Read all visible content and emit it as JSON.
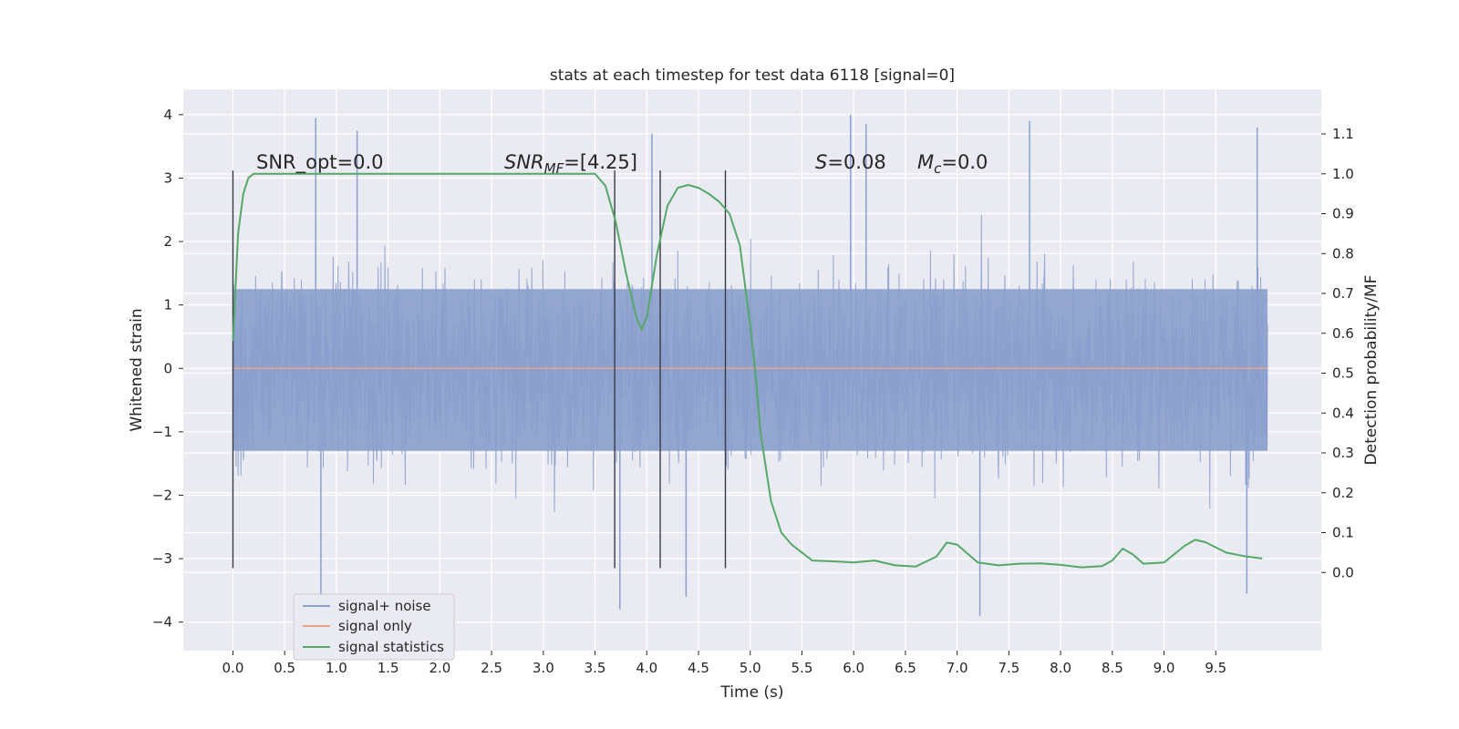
{
  "chart_data": {
    "type": "line",
    "title": "stats at each timestep for test data 6118 [signal=0]",
    "xlabel": "Time (s)",
    "ylabel_left": "Whitened strain",
    "ylabel_right": "Detection probability/MF",
    "xlim": [
      -0.48,
      10.52
    ],
    "ylim_left": [
      -4.45,
      4.4
    ],
    "ylim_right": [
      -0.196,
      1.212
    ],
    "x_ticks": [
      0.0,
      0.5,
      1.0,
      1.5,
      2.0,
      2.5,
      3.0,
      3.5,
      4.0,
      4.5,
      5.0,
      5.5,
      6.0,
      6.5,
      7.0,
      7.5,
      8.0,
      8.5,
      9.0,
      9.5
    ],
    "x_tick_labels": [
      "0.0",
      "0.5",
      "1.0",
      "1.5",
      "2.0",
      "2.5",
      "3.0",
      "3.5",
      "4.0",
      "4.5",
      "5.0",
      "5.5",
      "6.0",
      "6.5",
      "7.0",
      "7.5",
      "8.0",
      "8.5",
      "9.0",
      "9.5"
    ],
    "y_left_ticks": [
      -4,
      -3,
      -2,
      -1,
      0,
      1,
      2,
      3,
      4
    ],
    "y_left_tick_labels": [
      "−4",
      "−3",
      "−2",
      "−1",
      "0",
      "1",
      "2",
      "3",
      "4"
    ],
    "y_right_ticks": [
      0.0,
      0.1,
      0.2,
      0.3,
      0.4,
      0.5,
      0.6,
      0.7,
      0.8,
      0.9,
      1.0,
      1.1
    ],
    "y_right_tick_labels": [
      "0.0",
      "0.1",
      "0.2",
      "0.3",
      "0.4",
      "0.5",
      "0.6",
      "0.7",
      "0.8",
      "0.9",
      "1.0",
      "1.1"
    ],
    "grid": true,
    "legend": {
      "placement": "lower-left",
      "entries": [
        {
          "label": "signal+ noise",
          "color": "#8a9fcc"
        },
        {
          "label": "signal only",
          "color": "#e8a48a"
        },
        {
          "label": "signal statistics",
          "color": "#55a868"
        }
      ]
    },
    "annotations": {
      "snr_opt": "SNR_opt=0.0",
      "snr_mf_main": "SNR",
      "snr_mf_sub": "MF",
      "snr_mf_value": "=[4.25]",
      "s_symbol": "S",
      "s_value": "=0.08",
      "mc_main": "M",
      "mc_sub": "c",
      "mc_value": "=0.0"
    },
    "vertical_markers_x": [
      0.0,
      3.69,
      4.13,
      4.76
    ],
    "vertical_markers_range": [
      -3.15,
      3.12
    ],
    "series": [
      {
        "name": "signal+ noise",
        "axis": "left",
        "color": "#8a9fcc",
        "x_range": [
          0.0,
          10.0
        ],
        "band_typical": [
          -1.3,
          1.25
        ],
        "band_envelope": [
          -2.5,
          2.5
        ],
        "notable_peaks": [
          {
            "x": 0.8,
            "y": 3.95
          },
          {
            "x": 1.2,
            "y": 3.75
          },
          {
            "x": 3.74,
            "y": -3.8
          },
          {
            "x": 4.05,
            "y": 3.7
          },
          {
            "x": 5.97,
            "y": 4.0
          },
          {
            "x": 6.12,
            "y": 3.85
          },
          {
            "x": 7.22,
            "y": -3.9
          },
          {
            "x": 7.7,
            "y": 3.9
          },
          {
            "x": 9.9,
            "y": 3.8
          },
          {
            "x": 0.85,
            "y": -3.6
          },
          {
            "x": 4.38,
            "y": -3.6
          },
          {
            "x": 9.8,
            "y": -3.55
          }
        ]
      },
      {
        "name": "signal only",
        "axis": "left",
        "color": "#e8a48a",
        "x": [
          0.0,
          10.0
        ],
        "y": [
          0.0,
          0.0
        ]
      },
      {
        "name": "signal statistics",
        "axis": "right",
        "color": "#55a868",
        "x": [
          0.0,
          0.05,
          0.1,
          0.15,
          0.2,
          0.5,
          1.0,
          2.0,
          3.0,
          3.3,
          3.5,
          3.6,
          3.7,
          3.8,
          3.9,
          3.95,
          4.0,
          4.1,
          4.2,
          4.3,
          4.4,
          4.5,
          4.6,
          4.7,
          4.8,
          4.9,
          5.0,
          5.05,
          5.1,
          5.2,
          5.3,
          5.4,
          5.5,
          5.6,
          5.8,
          6.0,
          6.2,
          6.4,
          6.6,
          6.8,
          6.9,
          7.0,
          7.2,
          7.4,
          7.6,
          7.8,
          8.0,
          8.2,
          8.4,
          8.5,
          8.6,
          8.7,
          8.8,
          9.0,
          9.2,
          9.3,
          9.4,
          9.6,
          9.8,
          9.95
        ],
        "y": [
          0.58,
          0.85,
          0.95,
          0.99,
          1.0,
          1.0,
          1.0,
          1.0,
          1.0,
          1.0,
          1.0,
          0.97,
          0.88,
          0.75,
          0.64,
          0.61,
          0.64,
          0.8,
          0.92,
          0.965,
          0.972,
          0.965,
          0.95,
          0.93,
          0.9,
          0.82,
          0.62,
          0.5,
          0.35,
          0.18,
          0.1,
          0.07,
          0.05,
          0.03,
          0.028,
          0.025,
          0.03,
          0.018,
          0.015,
          0.04,
          0.075,
          0.07,
          0.025,
          0.018,
          0.022,
          0.023,
          0.019,
          0.013,
          0.016,
          0.03,
          0.06,
          0.045,
          0.022,
          0.025,
          0.067,
          0.082,
          0.076,
          0.05,
          0.04,
          0.035
        ]
      }
    ]
  }
}
